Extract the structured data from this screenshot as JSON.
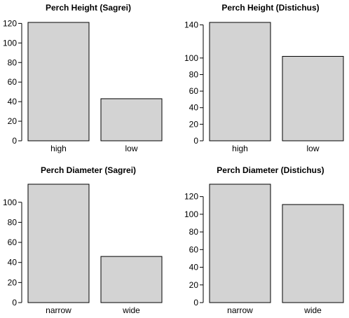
{
  "chart_data": [
    {
      "type": "bar",
      "title": "Perch Height (Sagrei)",
      "categories": [
        "high",
        "low"
      ],
      "values": [
        121,
        43
      ],
      "xlabel": "",
      "ylabel": "",
      "yticks": [
        0,
        20,
        40,
        60,
        80,
        100,
        120
      ],
      "ylim": [
        0,
        121
      ],
      "grid": false,
      "bar_color": "#d3d3d3"
    },
    {
      "type": "bar",
      "title": "Perch Height (Distichus)",
      "categories": [
        "high",
        "low"
      ],
      "values": [
        143,
        102
      ],
      "xlabel": "",
      "ylabel": "",
      "yticks": [
        0,
        20,
        40,
        60,
        80,
        100,
        140
      ],
      "ylim": [
        0,
        143
      ],
      "grid": false,
      "bar_color": "#d3d3d3"
    },
    {
      "type": "bar",
      "title": "Perch Diameter (Sagrei)",
      "categories": [
        "narrow",
        "wide"
      ],
      "values": [
        118,
        46
      ],
      "xlabel": "",
      "ylabel": "",
      "yticks": [
        0,
        20,
        40,
        60,
        80,
        100
      ],
      "ylim": [
        0,
        118
      ],
      "grid": false,
      "bar_color": "#d3d3d3"
    },
    {
      "type": "bar",
      "title": "Perch Diameter (Distichus)",
      "categories": [
        "narrow",
        "wide"
      ],
      "values": [
        134,
        111
      ],
      "xlabel": "",
      "ylabel": "",
      "yticks": [
        0,
        20,
        40,
        60,
        80,
        100,
        120
      ],
      "ylim": [
        0,
        134
      ],
      "grid": false,
      "bar_color": "#d3d3d3"
    }
  ]
}
